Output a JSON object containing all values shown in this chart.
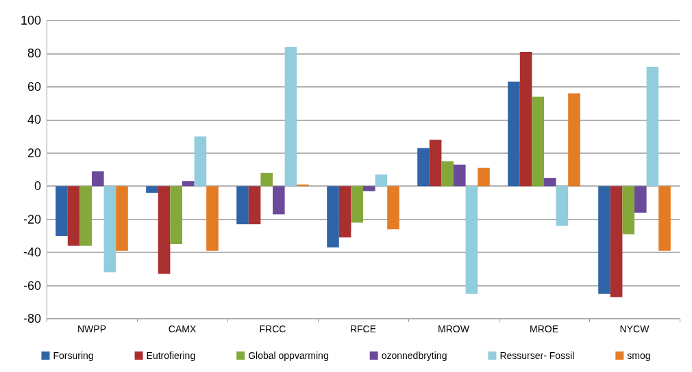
{
  "chart_data": {
    "type": "bar",
    "categories": [
      "NWPP",
      "CAMX",
      "FRCC",
      "RFCE",
      "MROW",
      "MROE",
      "NYCW"
    ],
    "series": [
      {
        "name": "Forsuring",
        "color": "#2f64a8",
        "values": [
          -30,
          -4,
          -23,
          -37,
          23,
          63,
          -65
        ]
      },
      {
        "name": "Eutrofiering",
        "color": "#aa2f2f",
        "values": [
          -36,
          -53,
          -23,
          -31,
          28,
          81,
          -67
        ]
      },
      {
        "name": "Global oppvarming",
        "color": "#84a83a",
        "values": [
          -36,
          -35,
          8,
          -22,
          15,
          54,
          -29
        ]
      },
      {
        "name": "ozonnedbryting",
        "color": "#6b4a9a",
        "values": [
          9,
          3,
          -17,
          -3,
          13,
          5,
          -16
        ]
      },
      {
        "name": "Ressurser- Fossil",
        "color": "#92cddd",
        "values": [
          -52,
          30,
          84,
          7,
          -65,
          -24,
          72
        ]
      },
      {
        "name": "smog",
        "color": "#e47c24",
        "values": [
          -39,
          -39,
          1,
          -26,
          11,
          56,
          -39
        ]
      }
    ],
    "ylim": [
      -80,
      100
    ],
    "yticks": [
      -80,
      -60,
      -40,
      -20,
      0,
      20,
      40,
      60,
      80,
      100
    ],
    "grid": "y",
    "legend": "bottom"
  }
}
